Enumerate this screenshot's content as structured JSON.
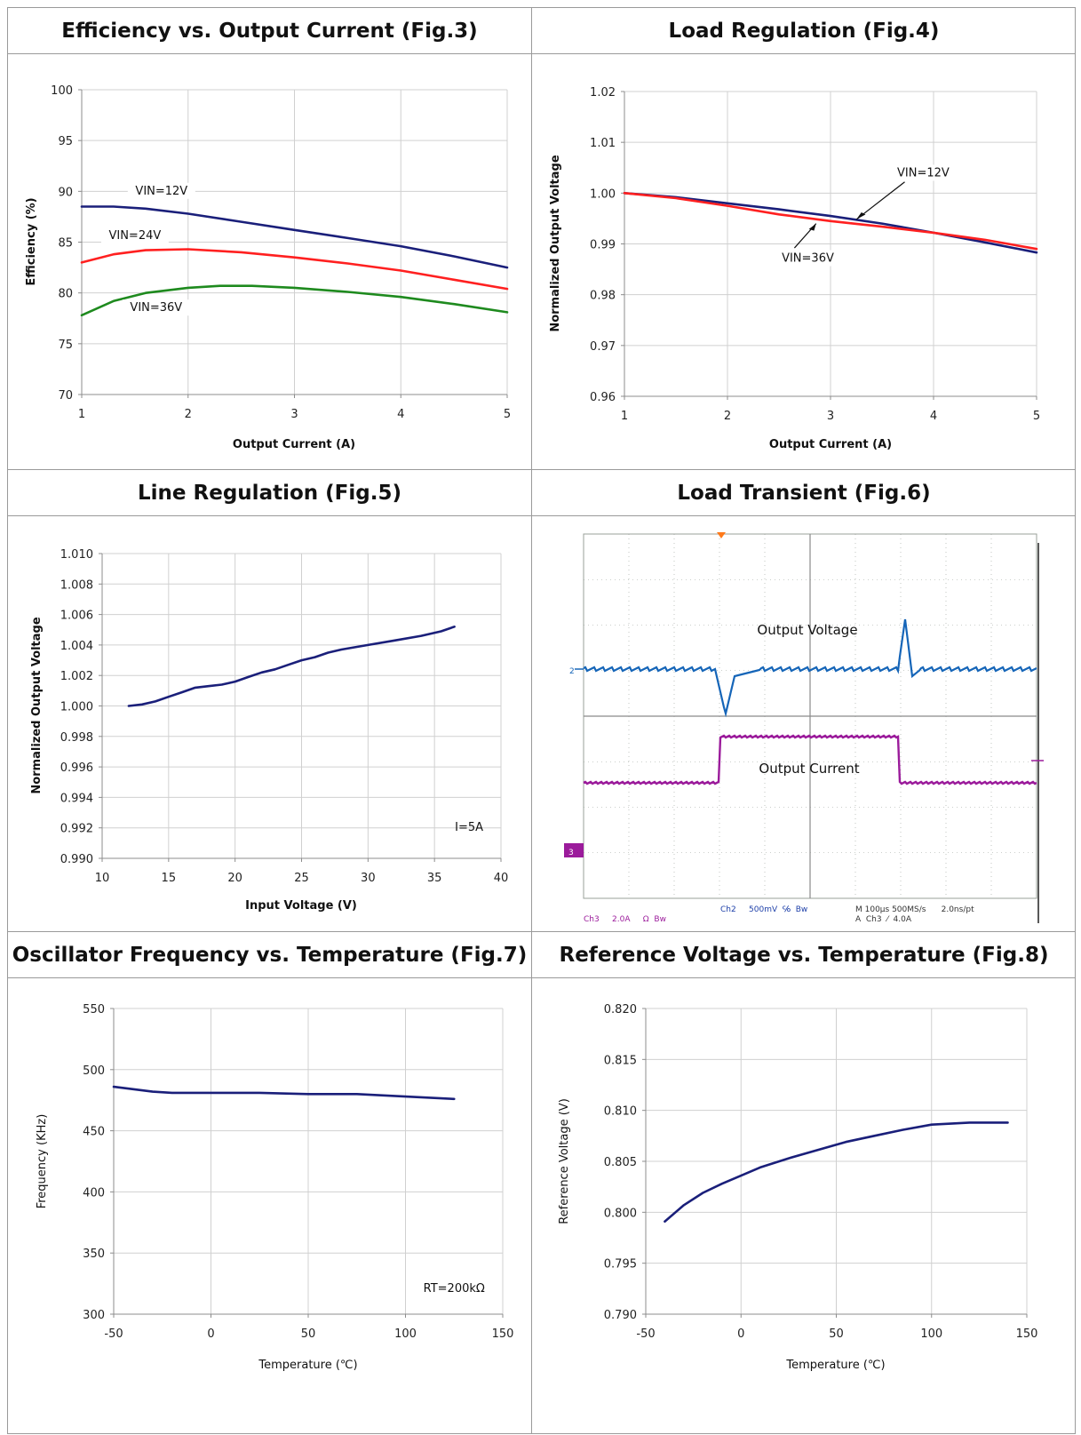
{
  "panels": {
    "fig3": {
      "header": "Efficiency vs. Output Current (Fig.3)"
    },
    "fig4": {
      "header": "Load Regulation (Fig.4)"
    },
    "fig5": {
      "header": "Line Regulation (Fig.5)"
    },
    "fig6": {
      "header": "Load Transient (Fig.6)",
      "label_voltage": "Output Voltage",
      "label_current": "Output Current",
      "ch2_marker": "2",
      "ch3_marker": "3",
      "status_ch2": "Ch2     500mV  ℅  Bw",
      "status_ch3": "Ch3     2.0A     Ω  Bw",
      "status_time": "M 100µs 500MS/s      2.0ns/pt",
      "status_trig": "A  Ch3  ⁄  4.0A",
      "colors": {
        "voltage": "#1565b8",
        "current": "#9b1b9b",
        "grid": "#9aa09a"
      }
    },
    "fig7": {
      "header": "Oscillator Frequency vs. Temperature (Fig.7)"
    },
    "fig8": {
      "header": "Reference Voltage vs. Temperature (Fig.8)"
    }
  },
  "chart_data": [
    {
      "id": "fig3",
      "type": "line",
      "title": "Efficiency vs. Output Current (Fig.3)",
      "xlabel": "Output Current (A)",
      "ylabel": "Efficiency (%)",
      "xlim": [
        1,
        5
      ],
      "ylim": [
        70,
        100
      ],
      "xticks": [
        1,
        2,
        3,
        4,
        5
      ],
      "yticks": [
        70,
        75,
        80,
        85,
        90,
        95,
        100
      ],
      "xtick_labels": [
        "1",
        "2",
        "3",
        "4",
        "5"
      ],
      "ytick_labels": [
        "70",
        "75",
        "80",
        "85",
        "90",
        "95",
        "100"
      ],
      "grid": true,
      "series": [
        {
          "name": "VIN=12V",
          "color": "#1a1f7a",
          "x": [
            1,
            1.3,
            1.6,
            2,
            2.5,
            3,
            3.5,
            4,
            4.5,
            5
          ],
          "y": [
            88.5,
            88.5,
            88.3,
            87.8,
            87.0,
            86.2,
            85.4,
            84.6,
            83.6,
            82.5
          ]
        },
        {
          "name": "VIN=24V",
          "color": "#ff2020",
          "x": [
            1,
            1.3,
            1.6,
            2,
            2.5,
            3,
            3.5,
            4,
            4.5,
            5
          ],
          "y": [
            83.0,
            83.8,
            84.2,
            84.3,
            84.0,
            83.5,
            82.9,
            82.2,
            81.3,
            80.4
          ]
        },
        {
          "name": "VIN=36V",
          "color": "#1e8a1e",
          "x": [
            1,
            1.3,
            1.6,
            2,
            2.3,
            2.6,
            3,
            3.5,
            4,
            4.5,
            5
          ],
          "y": [
            77.8,
            79.2,
            80.0,
            80.5,
            80.7,
            80.7,
            80.5,
            80.1,
            79.6,
            78.9,
            78.1
          ]
        }
      ],
      "annotations": [
        {
          "text": "VIN=12V",
          "x": 1.75,
          "y": 89.7
        },
        {
          "text": "VIN=24V",
          "x": 1.5,
          "y": 85.3
        },
        {
          "text": "VIN=36V",
          "x": 1.7,
          "y": 78.2
        }
      ]
    },
    {
      "id": "fig4",
      "type": "line",
      "title": "Load Regulation (Fig.4)",
      "xlabel": "Output Current (A)",
      "ylabel": "Normalized Output Voltage",
      "xlim": [
        1,
        5
      ],
      "ylim": [
        0.96,
        1.02
      ],
      "xticks": [
        1,
        2,
        3,
        4,
        5
      ],
      "yticks": [
        0.96,
        0.97,
        0.98,
        0.99,
        1.0,
        1.01,
        1.02
      ],
      "xtick_labels": [
        "1",
        "2",
        "3",
        "4",
        "5"
      ],
      "ytick_labels": [
        "0.96",
        "0.97",
        "0.98",
        "0.99",
        "1.00",
        "1.01",
        "1.02"
      ],
      "grid": true,
      "series": [
        {
          "name": "VIN=12V",
          "color": "#1a1f7a",
          "x": [
            1,
            1.5,
            2,
            2.5,
            3,
            3.5,
            4,
            4.5,
            5
          ],
          "y": [
            1.0,
            0.9992,
            0.998,
            0.9968,
            0.9955,
            0.994,
            0.9922,
            0.9903,
            0.9883
          ]
        },
        {
          "name": "VIN=36V",
          "color": "#ff2020",
          "x": [
            1,
            1.5,
            2,
            2.5,
            3,
            3.5,
            4,
            4.5,
            5
          ],
          "y": [
            1.0,
            0.999,
            0.9975,
            0.9958,
            0.9945,
            0.9934,
            0.9922,
            0.9908,
            0.989
          ]
        }
      ],
      "annotations": [
        {
          "text": "VIN=12V",
          "x": 3.9,
          "y": 1.0033
        },
        {
          "text": "VIN=36V",
          "x": 2.78,
          "y": 0.9865
        }
      ]
    },
    {
      "id": "fig5",
      "type": "line",
      "title": "Line Regulation (Fig.5)",
      "xlabel": "Input Voltage (V)",
      "ylabel": "Normalized Output Voltage",
      "xlim": [
        10,
        40
      ],
      "ylim": [
        0.99,
        1.01
      ],
      "xticks": [
        10,
        15,
        20,
        25,
        30,
        35,
        40
      ],
      "yticks": [
        0.99,
        0.992,
        0.994,
        0.996,
        0.998,
        1.0,
        1.002,
        1.004,
        1.006,
        1.008,
        1.01
      ],
      "xtick_labels": [
        "10",
        "15",
        "20",
        "25",
        "30",
        "35",
        "40"
      ],
      "ytick_labels": [
        "0.990",
        "0.992",
        "0.994",
        "0.996",
        "0.998",
        "1.000",
        "1.002",
        "1.004",
        "1.006",
        "1.008",
        "1.010"
      ],
      "grid": true,
      "series": [
        {
          "name": "",
          "color": "#1a1f7a",
          "x": [
            12,
            13,
            14,
            15,
            16,
            17,
            18,
            19,
            20,
            21,
            22,
            23,
            24,
            25,
            26,
            27,
            28,
            30,
            32,
            34,
            35.5,
            36.5
          ],
          "y": [
            1.0,
            1.0001,
            1.0003,
            1.0006,
            1.0009,
            1.0012,
            1.0013,
            1.0014,
            1.0016,
            1.0019,
            1.0022,
            1.0024,
            1.0027,
            1.003,
            1.0032,
            1.0035,
            1.0037,
            1.004,
            1.0043,
            1.0046,
            1.0049,
            1.0052
          ]
        }
      ],
      "annotations": [
        {
          "text": "I=5A",
          "x": 37.6,
          "y": 0.9918
        }
      ]
    },
    {
      "id": "fig7",
      "type": "line",
      "title": "Oscillator Frequency vs. Temperature (Fig.7)",
      "xlabel": "Temperature (℃)",
      "ylabel": "Frequency (KHz)",
      "xlim": [
        -50,
        150
      ],
      "ylim": [
        300,
        550
      ],
      "xticks": [
        -50,
        0,
        50,
        100,
        150
      ],
      "yticks": [
        300,
        350,
        400,
        450,
        500,
        550
      ],
      "xtick_labels": [
        "-50",
        "0",
        "50",
        "100",
        "150"
      ],
      "ytick_labels": [
        "300",
        "350",
        "400",
        "450",
        "500",
        "550"
      ],
      "grid": true,
      "series": [
        {
          "name": "",
          "color": "#1a1f7a",
          "x": [
            -50,
            -40,
            -30,
            -20,
            0,
            25,
            50,
            75,
            100,
            125
          ],
          "y": [
            486,
            484,
            482,
            481,
            481,
            481,
            480,
            480,
            478,
            476
          ]
        }
      ],
      "annotations": [
        {
          "text": "RT=200kΩ",
          "x": 125,
          "y": 318
        }
      ]
    },
    {
      "id": "fig8",
      "type": "line",
      "title": "Reference Voltage vs. Temperature (Fig.8)",
      "xlabel": "Temperature (℃)",
      "ylabel": "Reference Voltage (V)",
      "xlim": [
        -50,
        150
      ],
      "ylim": [
        0.79,
        0.82
      ],
      "xticks": [
        -50,
        0,
        50,
        100,
        150
      ],
      "yticks": [
        0.79,
        0.795,
        0.8,
        0.805,
        0.81,
        0.815,
        0.82
      ],
      "xtick_labels": [
        "-50",
        "0",
        "50",
        "100",
        "150"
      ],
      "ytick_labels": [
        "0.790",
        "0.795",
        "0.800",
        "0.805",
        "0.810",
        "0.815",
        "0.820"
      ],
      "grid": true,
      "series": [
        {
          "name": "",
          "color": "#1a1f7a",
          "x": [
            -40,
            -30,
            -20,
            -10,
            0,
            10,
            25,
            40,
            55,
            70,
            85,
            100,
            120,
            140
          ],
          "y": [
            0.7991,
            0.8007,
            0.8019,
            0.8028,
            0.8036,
            0.8044,
            0.8053,
            0.8061,
            0.8069,
            0.8075,
            0.8081,
            0.8086,
            0.8088,
            0.8088
          ]
        }
      ],
      "annotations": []
    }
  ]
}
